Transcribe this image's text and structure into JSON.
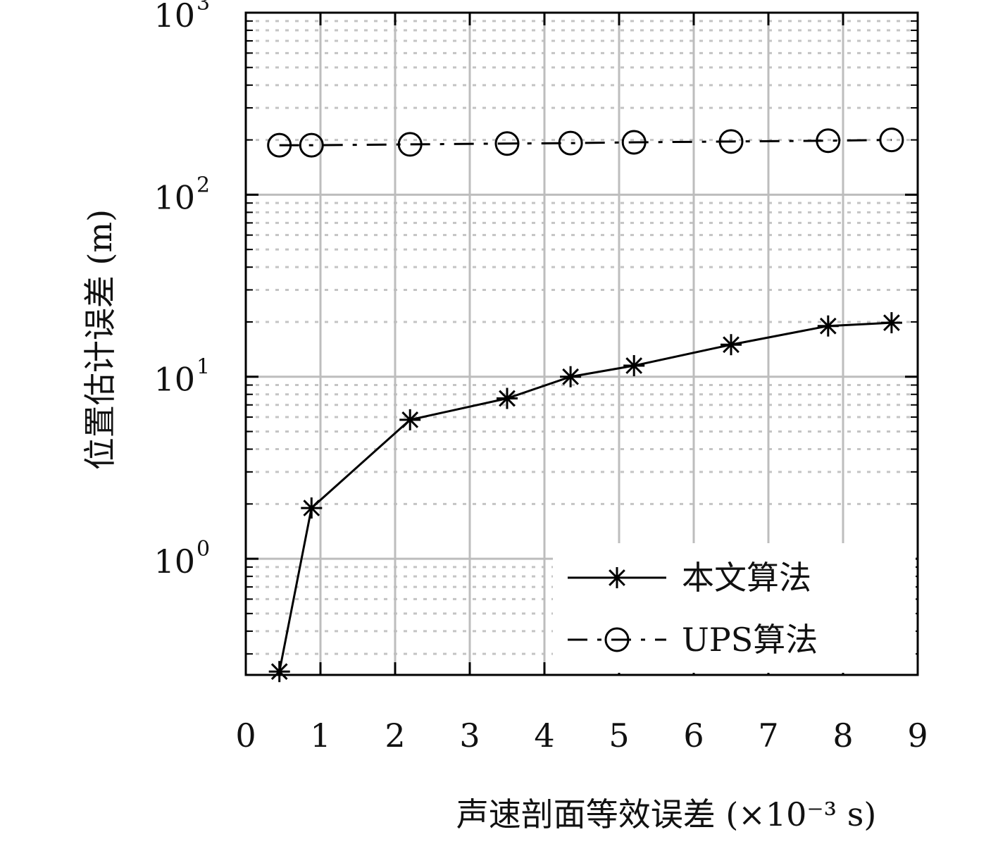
{
  "chart_data": {
    "type": "line",
    "xlabel": "声速剖面等效误差 (×10⁻³ s)",
    "ylabel": "位置估计误差 (m)",
    "xlim": [
      0,
      9
    ],
    "ylim": [
      0.23,
      1000
    ],
    "yscale": "log",
    "grid": true,
    "legend_position": "bottom-right",
    "x_ticks": [
      {
        "value": 0,
        "label": "0"
      },
      {
        "value": 1,
        "label": "1"
      },
      {
        "value": 2,
        "label": "2"
      },
      {
        "value": 3,
        "label": "3"
      },
      {
        "value": 4,
        "label": "4"
      },
      {
        "value": 5,
        "label": "5"
      },
      {
        "value": 6,
        "label": "6"
      },
      {
        "value": 7,
        "label": "7"
      },
      {
        "value": 8,
        "label": "8"
      },
      {
        "value": 9,
        "label": "9"
      }
    ],
    "y_ticks": [
      {
        "value": 1,
        "base": "10",
        "exp": "0"
      },
      {
        "value": 10,
        "base": "10",
        "exp": "1"
      },
      {
        "value": 100,
        "base": "10",
        "exp": "2"
      },
      {
        "value": 1000,
        "base": "10",
        "exp": "3"
      }
    ],
    "series": [
      {
        "name": "本文算法",
        "marker": "asterisk",
        "linestyle": "solid",
        "color": "#000000",
        "x": [
          0.45,
          0.88,
          2.2,
          3.5,
          4.35,
          5.2,
          6.5,
          7.8,
          8.65
        ],
        "y": [
          0.24,
          1.9,
          5.8,
          7.6,
          10.0,
          11.5,
          15.0,
          19.0,
          19.8
        ]
      },
      {
        "name": "UPS算法",
        "marker": "circle",
        "linestyle": "dashdot",
        "color": "#000000",
        "x": [
          0.45,
          0.88,
          2.2,
          3.5,
          4.35,
          5.2,
          6.5,
          7.8,
          8.65
        ],
        "y": [
          187,
          187,
          189,
          191,
          192,
          194,
          196,
          198,
          200
        ]
      }
    ]
  }
}
